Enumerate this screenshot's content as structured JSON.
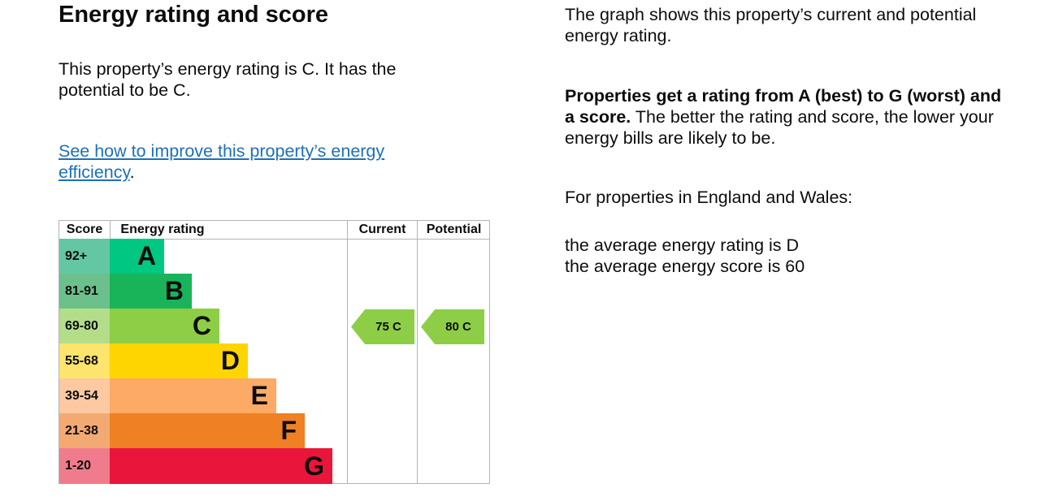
{
  "title": "Energy rating and score",
  "intro": "This property’s energy rating is C. It has the potential to be C.",
  "link_text": "See how to improve this property’s energy efficiency",
  "link_suffix": ".",
  "table": {
    "headers": {
      "score": "Score",
      "rating": "Energy rating",
      "current": "Current",
      "potential": "Potential"
    },
    "bands": [
      {
        "score": "92+",
        "letter": "A",
        "color": "#00c781",
        "tint": "#64c7a4"
      },
      {
        "score": "81-91",
        "letter": "B",
        "color": "#19b459",
        "tint": "#6cc08c"
      },
      {
        "score": "69-80",
        "letter": "C",
        "color": "#8dce46",
        "tint": "#b4dd8a"
      },
      {
        "score": "55-68",
        "letter": "D",
        "color": "#ffd500",
        "tint": "#fde46c"
      },
      {
        "score": "39-54",
        "letter": "E",
        "color": "#fcaa65",
        "tint": "#fcc9a0"
      },
      {
        "score": "21-38",
        "letter": "F",
        "color": "#ef8023",
        "tint": "#f2aa72"
      },
      {
        "score": "1-20",
        "letter": "G",
        "color": "#e9153b",
        "tint": "#f07b8d"
      }
    ],
    "current": {
      "label": "75  C",
      "score": 75,
      "band": "C"
    },
    "potential": {
      "label": "80  C",
      "score": 80,
      "band": "C"
    }
  },
  "right": {
    "p1": "The graph shows this property’s current and potential energy rating.",
    "p2_bold": "Properties get a rating from A (best) to G (worst) and a score.",
    "p2_rest": " The better the rating and score, the lower your energy bills are likely to be.",
    "p3": "For properties in England and Wales:",
    "p4a": "the average energy rating is D",
    "p4b": "the average energy score is 60"
  }
}
